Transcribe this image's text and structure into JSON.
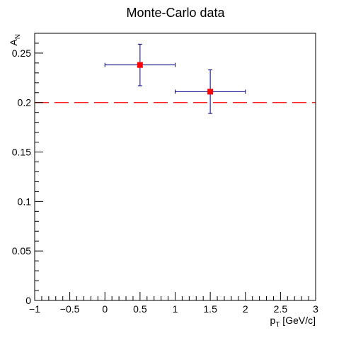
{
  "chart_data": {
    "type": "scatter",
    "title": "Monte-Carlo data",
    "xlabel_main": "p",
    "xlabel_sub": "T",
    "xlabel_rest": " [GeV/c]",
    "ylabel_main": "A",
    "ylabel_sub": "N",
    "xlim": [
      -1,
      3
    ],
    "ylim": [
      0,
      0.27
    ],
    "x_ticks": [
      {
        "value": -1,
        "label": "−1"
      },
      {
        "value": -0.5,
        "label": "−0.5"
      },
      {
        "value": 0,
        "label": "0"
      },
      {
        "value": 0.5,
        "label": "0.5"
      },
      {
        "value": 1,
        "label": "1"
      },
      {
        "value": 1.5,
        "label": "1.5"
      },
      {
        "value": 2,
        "label": "2"
      },
      {
        "value": 2.5,
        "label": "2.5"
      },
      {
        "value": 3,
        "label": "3"
      }
    ],
    "y_ticks": [
      {
        "value": 0,
        "label": "0"
      },
      {
        "value": 0.05,
        "label": "0.05"
      },
      {
        "value": 0.1,
        "label": "0.1"
      },
      {
        "value": 0.15,
        "label": "0.15"
      },
      {
        "value": 0.2,
        "label": "0.2"
      },
      {
        "value": 0.25,
        "label": "0.25"
      }
    ],
    "points": [
      {
        "x": 0.5,
        "y": 0.238,
        "xerr": 0.5,
        "yerr": 0.021
      },
      {
        "x": 1.5,
        "y": 0.211,
        "xerr": 0.5,
        "yerr": 0.022
      }
    ],
    "reference_line": {
      "y": 0.2,
      "style": "dashed",
      "color": "#ff0000"
    },
    "marker_color": "#ff0000",
    "errorbar_color": "#000080",
    "grid": false,
    "legend": "none"
  }
}
